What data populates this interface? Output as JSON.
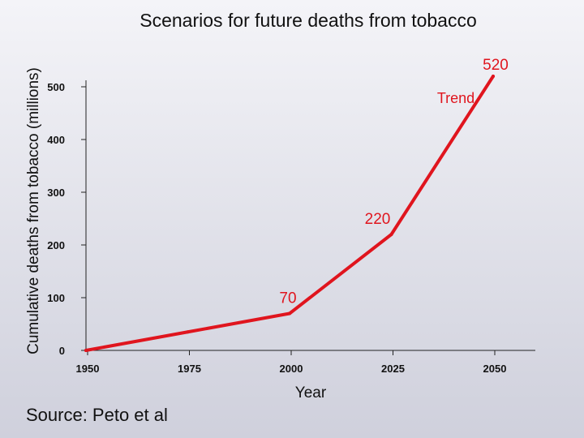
{
  "chart_data": {
    "type": "line",
    "title": "Scenarios for future deaths from tobacco",
    "xlabel": "Year",
    "ylabel": "Cumulative deaths from tobacco (millions)",
    "xlim": [
      1950,
      2050
    ],
    "ylim": [
      0,
      500
    ],
    "x_ticks": [
      1950,
      1975,
      2000,
      2025,
      2050
    ],
    "y_ticks": [
      0,
      100,
      200,
      300,
      400,
      500
    ],
    "grid": false,
    "series": [
      {
        "name": "Trend",
        "color": "#e0151e",
        "points": [
          {
            "x": 1950,
            "y": 0
          },
          {
            "x": 1975,
            "y": 35
          },
          {
            "x": 2000,
            "y": 70
          },
          {
            "x": 2025,
            "y": 220
          },
          {
            "x": 2050,
            "y": 520
          }
        ]
      }
    ],
    "data_labels": [
      {
        "x": 2000,
        "y": 70,
        "text": "70"
      },
      {
        "x": 2025,
        "y": 220,
        "text": "220"
      },
      {
        "x": 2050,
        "y": 520,
        "text": "520"
      }
    ],
    "annotations": [
      {
        "text": "Trend",
        "x": 2046,
        "y": 478
      }
    ]
  },
  "source": "Source: Peto et al"
}
